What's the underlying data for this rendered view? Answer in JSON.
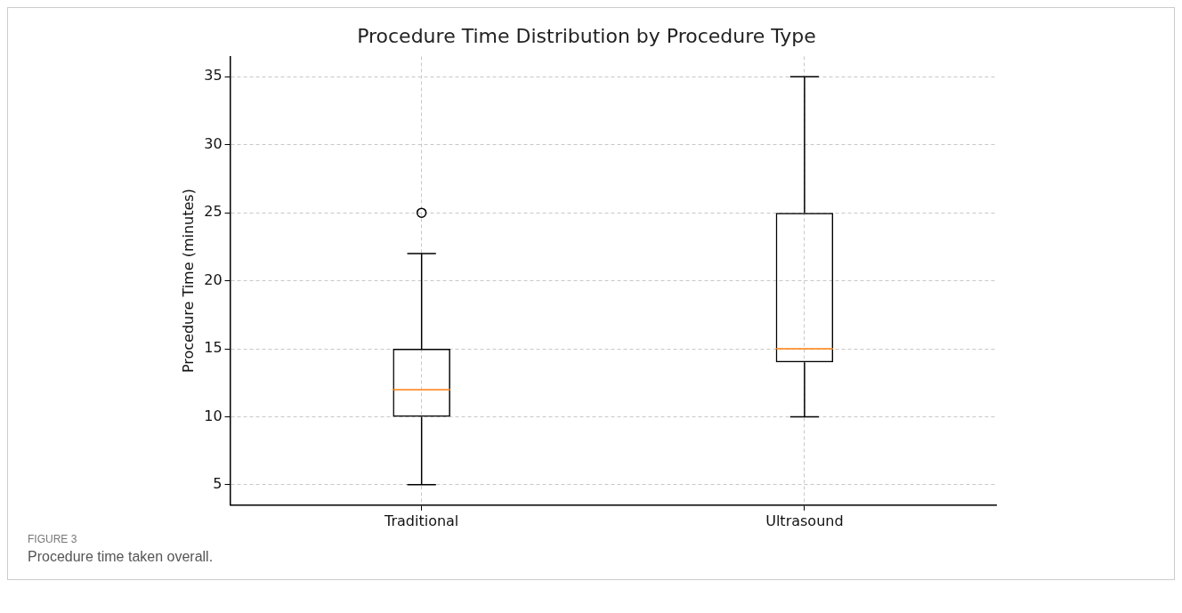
{
  "chart_data": {
    "type": "box",
    "title": "Procedure Time Distribution by Procedure Type",
    "ylabel": "Procedure Time (minutes)",
    "categories": [
      "Traditional",
      "Ultrasound"
    ],
    "boxes": [
      {
        "low": 5,
        "q1": 10,
        "median": 12,
        "q3": 15,
        "high": 22,
        "outliers": [
          25
        ]
      },
      {
        "low": 10,
        "q1": 14,
        "median": 15,
        "q3": 25,
        "high": 35
      }
    ],
    "ylim": [
      3.5,
      36.5
    ],
    "yticks": [
      5,
      10,
      15,
      20,
      25,
      30,
      35
    ],
    "grid": true,
    "legend": false,
    "annotations": [
      "FIGURE 3",
      "Procedure time taken overall."
    ]
  }
}
